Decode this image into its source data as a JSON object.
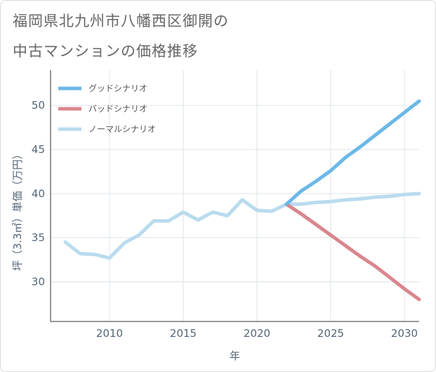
{
  "title": {
    "line1": "福岡県北九州市八幡西区御開の",
    "line2": "中古マンションの価格推移"
  },
  "chart_data": {
    "type": "line",
    "xlabel": "年",
    "ylabel": "坪（3.3㎡）単価（万円）",
    "xlim": [
      2006,
      2031
    ],
    "ylim": [
      25.5,
      54
    ],
    "xticks": [
      2010,
      2015,
      2020,
      2025,
      2030
    ],
    "yticks": [
      30,
      35,
      40,
      45,
      50
    ],
    "grid": true,
    "legend_position": "top-left",
    "series": [
      {
        "name": "グッドシナリオ",
        "color": "#6bb8e8",
        "x": [
          2022,
          2023,
          2024,
          2025,
          2026,
          2027,
          2028,
          2029,
          2030,
          2031
        ],
        "y": [
          38.8,
          40.3,
          41.4,
          42.6,
          44.1,
          45.3,
          46.6,
          47.9,
          49.2,
          50.5
        ]
      },
      {
        "name": "バッドシナリオ",
        "color": "#d9868d",
        "x": [
          2022,
          2023,
          2024,
          2025,
          2026,
          2027,
          2028,
          2029,
          2030,
          2031
        ],
        "y": [
          38.8,
          37.7,
          36.5,
          35.3,
          34.1,
          32.9,
          31.8,
          30.5,
          29.2,
          28.0
        ]
      },
      {
        "name": "ノーマルシナリオ",
        "color": "#b9dbee",
        "x": [
          2007,
          2008,
          2009,
          2010,
          2011,
          2012,
          2013,
          2014,
          2015,
          2016,
          2017,
          2018,
          2019,
          2020,
          2021,
          2022,
          2023,
          2024,
          2025,
          2026,
          2027,
          2028,
          2029,
          2030,
          2031
        ],
        "y": [
          34.5,
          33.2,
          33.1,
          32.7,
          34.4,
          35.3,
          36.9,
          36.9,
          37.9,
          37.0,
          37.9,
          37.5,
          39.3,
          38.1,
          38.0,
          38.8,
          38.8,
          39.0,
          39.1,
          39.3,
          39.4,
          39.6,
          39.7,
          39.9,
          40.0
        ]
      }
    ]
  }
}
